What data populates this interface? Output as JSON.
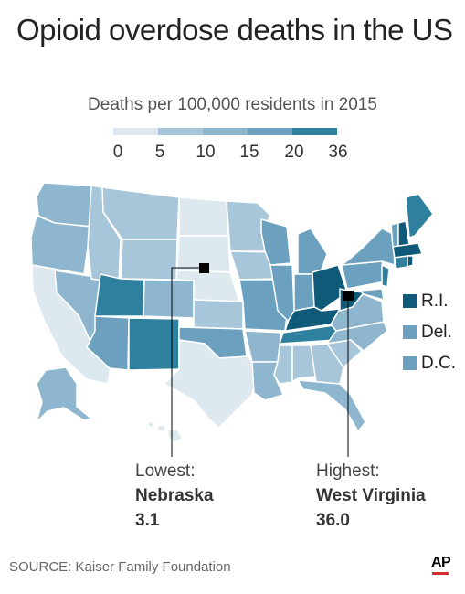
{
  "title": "Opioid overdose deaths in the US",
  "subtitle": "Deaths per 100,000 residents in 2015",
  "legend": {
    "ticks": [
      "0",
      "5",
      "10",
      "15",
      "20",
      "36"
    ],
    "colors": [
      "#dde9ef",
      "#a7c6d9",
      "#8fb6cf",
      "#6ba1bf",
      "#2f7f9e",
      "#0f5a78"
    ]
  },
  "small_states": [
    {
      "label": "R.I.",
      "color": "#0f5a78"
    },
    {
      "label": "Del.",
      "color": "#6ba1bf"
    },
    {
      "label": "D.C.",
      "color": "#6ba1bf"
    }
  ],
  "callouts": {
    "lowest": {
      "label": "Lowest:",
      "state": "Nebraska",
      "value": "3.1"
    },
    "highest": {
      "label": "Highest:",
      "state": "West Virginia",
      "value": "36.0"
    }
  },
  "source": "SOURCE: Kaiser Family Foundation",
  "credit": "AP",
  "credit_color": "#d32f2f"
}
